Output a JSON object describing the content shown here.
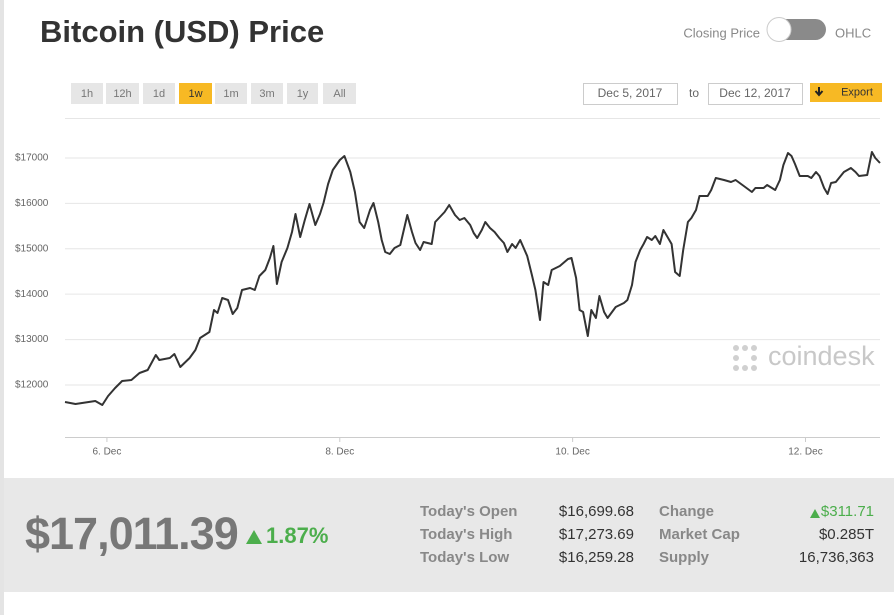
{
  "header": {
    "title": "Bitcoin (USD) Price",
    "toggle_left": "Closing Price",
    "toggle_right": "OHLC"
  },
  "controls": {
    "ranges": [
      "1h",
      "12h",
      "1d",
      "1w",
      "1m",
      "3m",
      "1y",
      "All"
    ],
    "active": 3,
    "date_from": "Dec 5, 2017",
    "to": "to",
    "date_to": "Dec 12, 2017",
    "export": "Export"
  },
  "watermark": "coindesk",
  "chart_data": {
    "type": "line",
    "color": "#333333",
    "grid": true,
    "x": [
      5.64,
      5.73,
      5.9,
      5.96,
      6.01,
      6.07,
      6.13,
      6.21,
      6.28,
      6.35,
      6.42,
      6.45,
      6.54,
      6.58,
      6.63,
      6.71,
      6.76,
      6.8,
      6.88,
      6.92,
      6.95,
      6.99,
      7.04,
      7.08,
      7.12,
      7.16,
      7.23,
      7.27,
      7.31,
      7.36,
      7.4,
      7.43,
      7.46,
      7.5,
      7.55,
      7.59,
      7.62,
      7.66,
      7.7,
      7.74,
      7.79,
      7.83,
      7.86,
      7.9,
      7.94,
      8.0,
      8.04,
      8.09,
      8.13,
      8.17,
      8.21,
      8.26,
      8.29,
      8.33,
      8.36,
      8.39,
      8.43,
      8.47,
      8.52,
      8.55,
      8.58,
      8.62,
      8.65,
      8.69,
      8.72,
      8.79,
      8.82,
      8.9,
      8.94,
      8.99,
      9.03,
      9.07,
      9.12,
      9.15,
      9.18,
      9.22,
      9.25,
      9.29,
      9.33,
      9.37,
      9.41,
      9.44,
      9.48,
      9.51,
      9.55,
      9.58,
      9.61,
      9.65,
      9.68,
      9.72,
      9.75,
      9.79,
      9.82,
      9.89,
      9.96,
      9.99,
      10.03,
      10.06,
      10.09,
      10.13,
      10.16,
      10.2,
      10.23,
      10.27,
      10.3,
      10.37,
      10.44,
      10.47,
      10.51,
      10.54,
      10.58,
      10.61,
      10.64,
      10.68,
      10.71,
      10.75,
      10.78,
      10.82,
      10.85,
      10.88,
      10.92,
      10.95,
      10.99,
      11.02,
      11.06,
      11.09,
      11.16,
      11.19,
      11.23,
      11.3,
      11.36,
      11.4,
      11.47,
      11.54,
      11.57,
      11.64,
      11.67,
      11.74,
      11.78,
      11.81,
      11.85,
      11.88,
      11.91,
      11.95,
      12.02,
      12.05,
      12.09,
      12.12,
      12.16,
      12.19,
      12.22,
      12.26,
      12.33,
      12.39,
      12.43,
      12.46,
      12.53,
      12.57,
      12.6,
      12.64
    ],
    "values": [
      11625,
      11580,
      11647,
      11558,
      11757,
      11933,
      12087,
      12109,
      12264,
      12330,
      12660,
      12550,
      12594,
      12682,
      12396,
      12594,
      12770,
      13035,
      13167,
      13651,
      13585,
      13916,
      13872,
      13563,
      13696,
      14092,
      14136,
      14092,
      14400,
      14533,
      14797,
      15061,
      14224,
      14709,
      15017,
      15370,
      15766,
      15260,
      15634,
      15987,
      15524,
      15766,
      16009,
      16427,
      16736,
      16956,
      17044,
      16692,
      16251,
      15590,
      15458,
      15854,
      16009,
      15590,
      15194,
      14929,
      14885,
      15017,
      15083,
      15414,
      15744,
      15370,
      15127,
      14973,
      15149,
      15105,
      15590,
      15810,
      15965,
      15744,
      15634,
      15678,
      15524,
      15348,
      15238,
      15414,
      15590,
      15458,
      15370,
      15238,
      15127,
      14929,
      15105,
      15017,
      15194,
      15017,
      14841,
      14423,
      14092,
      13431,
      14268,
      14202,
      14533,
      14621,
      14775,
      14797,
      14356,
      13651,
      13607,
      13079,
      13651,
      13475,
      13960,
      13607,
      13475,
      13718,
      13806,
      13872,
      14202,
      14709,
      14973,
      15105,
      15260,
      15194,
      15282,
      15105,
      15414,
      15238,
      15105,
      14489,
      14400,
      14973,
      15590,
      15678,
      15854,
      16163,
      16163,
      16295,
      16559,
      16515,
      16471,
      16515,
      16383,
      16251,
      16339,
      16339,
      16405,
      16295,
      16515,
      16846,
      17110,
      17044,
      16868,
      16603,
      16603,
      16559,
      16692,
      16603,
      16339,
      16207,
      16449,
      16471,
      16692,
      16780,
      16692,
      16603,
      16625,
      17132,
      17000,
      16890
    ],
    "xlim": [
      5.64,
      12.64
    ],
    "xticks": [
      {
        "value": 6,
        "label": "6. Dec"
      },
      {
        "value": 8,
        "label": "8. Dec"
      },
      {
        "value": 10,
        "label": "10. Dec"
      },
      {
        "value": 12,
        "label": "12. Dec"
      }
    ],
    "ylim": [
      10854,
      17881
    ],
    "yticks": [
      {
        "value": 12000,
        "label": "$12000"
      },
      {
        "value": 13000,
        "label": "$13000"
      },
      {
        "value": 14000,
        "label": "$14000"
      },
      {
        "value": 15000,
        "label": "$15000"
      },
      {
        "value": 16000,
        "label": "$16000"
      },
      {
        "value": 17000,
        "label": "$17000"
      }
    ]
  },
  "footer": {
    "price": "$17,011.39",
    "change_percent": "1.87%",
    "stats": [
      [
        "Today's Open",
        "$16,699.68"
      ],
      [
        "Today's High",
        "$17,273.69"
      ],
      [
        "Today's Low",
        "$16,259.28"
      ]
    ],
    "stats2": [
      [
        "Change",
        "$311.71"
      ],
      [
        "Market Cap",
        "$0.285T"
      ],
      [
        "Supply",
        "16,736,363"
      ]
    ]
  }
}
